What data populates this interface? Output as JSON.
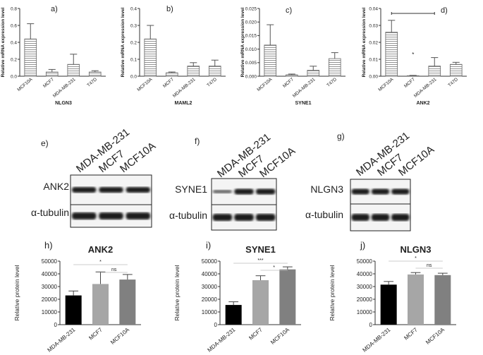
{
  "chart_data": [
    {
      "type": "bar",
      "panel_label": "a)",
      "x_label": "NLGN3",
      "y_label": "Relative mRNA expression level",
      "categories": [
        "MCF10A",
        "MCF7",
        "MDA-MB-231",
        "T47D"
      ],
      "values": [
        0.44,
        0.05,
        0.14,
        0.05
      ],
      "errors": [
        0.18,
        0.03,
        0.12,
        0.015
      ],
      "colors": [
        "#666666",
        "#666666",
        "#666666",
        "#666666"
      ],
      "hatch": true,
      "ylim": [
        0,
        0.8
      ],
      "yticks": [
        {
          "value": 0,
          "label": "0.0"
        },
        0.2,
        0.4,
        0.6,
        0.8
      ]
    },
    {
      "type": "bar",
      "panel_label": "b)",
      "x_label": "MAML2",
      "y_label": "Relative mRNA expression level",
      "categories": [
        "MCF10A",
        "MCF7",
        "MDA-MB-231",
        "T47D"
      ],
      "values": [
        0.22,
        0.02,
        0.06,
        0.06
      ],
      "errors": [
        0.08,
        0.005,
        0.02,
        0.035
      ],
      "colors": [
        "#666666",
        "#666666",
        "#666666",
        "#666666"
      ],
      "hatch": true,
      "ylim": [
        0,
        0.4
      ],
      "yticks": [
        {
          "value": 0,
          "label": "0.0"
        },
        0.1,
        0.2,
        0.3,
        0.4
      ]
    },
    {
      "type": "bar",
      "panel_label": "c)",
      "x_label": "SYNE1",
      "y_label": "Relative mRNA expression level",
      "categories": [
        "MCF10A",
        "MCF7",
        "MDA-MB-231",
        "T47D"
      ],
      "values": [
        0.0115,
        0.0005,
        0.0022,
        0.0065
      ],
      "errors": [
        0.0075,
        0.0003,
        0.0015,
        0.0022
      ],
      "colors": [
        "#666666",
        "#666666",
        "#666666",
        "#666666"
      ],
      "hatch": true,
      "ylim": [
        0,
        0.025
      ],
      "yticks": [
        {
          "value": 0,
          "label": "0.000"
        },
        0.005,
        {
          "value": 0.01,
          "label": "0.010"
        },
        0.015,
        {
          "value": 0.02,
          "label": "0.020"
        },
        0.025
      ]
    },
    {
      "type": "bar",
      "panel_label": "d)",
      "x_label": "ANK2",
      "y_label": "Relative mRNA expression level",
      "categories": [
        "MCF10A",
        "MCF7",
        "MDA-MB-231",
        "T47D"
      ],
      "values": [
        0.026,
        0.0003,
        0.006,
        0.007
      ],
      "errors": [
        0.007,
        0.0002,
        0.005,
        0.0012
      ],
      "colors": [
        "#666666",
        "#666666",
        "#666666",
        "#666666"
      ],
      "hatch": true,
      "ylim": [
        0,
        0.04
      ],
      "yticks": [
        {
          "value": 0,
          "label": "0.00"
        },
        0.01,
        0.02,
        0.03,
        0.04
      ],
      "annotations": [
        "*"
      ]
    },
    {
      "type": "bar",
      "panel_label": "h)",
      "title": "ANK2",
      "y_label": "Relative protein level",
      "categories": [
        "MDA-MB-231",
        "MCF7",
        "MCF10A"
      ],
      "values": [
        23000,
        32000,
        35500
      ],
      "errors": [
        3500,
        9500,
        4000
      ],
      "colors": [
        "#000000",
        "#a6a6a6",
        "#808080"
      ],
      "hatch": false,
      "ylim": [
        0,
        50000
      ],
      "yticks": [
        0,
        10000,
        20000,
        30000,
        40000,
        50000
      ],
      "annotations": [
        "*",
        "ns"
      ]
    },
    {
      "type": "bar",
      "panel_label": "i)",
      "title": "SYNE1",
      "y_label": "Relative protein level",
      "categories": [
        "MDA-MB-231",
        "MCF7",
        "MCF10A"
      ],
      "values": [
        15500,
        35000,
        43500
      ],
      "errors": [
        2500,
        3500,
        2000
      ],
      "colors": [
        "#000000",
        "#a6a6a6",
        "#808080"
      ],
      "hatch": false,
      "ylim": [
        0,
        50000
      ],
      "yticks": [
        0,
        10000,
        20000,
        30000,
        40000,
        50000
      ],
      "annotations": [
        "***",
        "*"
      ]
    },
    {
      "type": "bar",
      "panel_label": "j)",
      "title": "NLGN3",
      "y_label": "Relative protein level",
      "categories": [
        "MDA-MB-231",
        "MCF7",
        "MCF10A"
      ],
      "values": [
        31500,
        39500,
        39000
      ],
      "errors": [
        2500,
        1500,
        1500
      ],
      "colors": [
        "#000000",
        "#a6a6a6",
        "#808080"
      ],
      "hatch": false,
      "ylim": [
        0,
        50000
      ],
      "yticks": [
        0,
        10000,
        20000,
        30000,
        40000,
        50000
      ],
      "annotations": [
        "*",
        "ns"
      ]
    }
  ],
  "blots": [
    {
      "panel_label": "e)",
      "columns": [
        "MDA-MB-231",
        "MCF7",
        "MCF10A"
      ],
      "rows": [
        "ANK2",
        "α-tubulin"
      ]
    },
    {
      "panel_label": "f)",
      "columns": [
        "MDA-MB-231",
        "MCF7",
        "MCF10A"
      ],
      "rows": [
        "SYNE1",
        "α-tubulin"
      ]
    },
    {
      "panel_label": "g)",
      "columns": [
        "MDA-MB-231",
        "MCF7",
        "MCF10A"
      ],
      "rows": [
        "NLGN3",
        "α-tubulin"
      ]
    }
  ]
}
